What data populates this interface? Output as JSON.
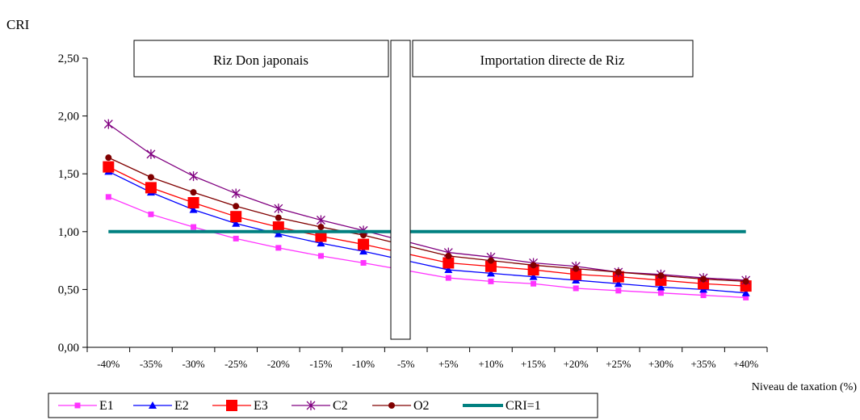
{
  "chart_data": {
    "type": "line",
    "ylabel": "CRI",
    "xlabel": "Niveau de taxation (%)",
    "ylim": [
      0,
      2.5
    ],
    "yticks": [
      "0,00",
      "0,50",
      "1,00",
      "1,50",
      "2,00",
      "2,50"
    ],
    "categories": [
      "-40%",
      "-35%",
      "-30%",
      "-25%",
      "-20%",
      "-15%",
      "-10%",
      "-5%",
      "+5%",
      "+10%",
      "+15%",
      "+20%",
      "+25%",
      "+30%",
      "+35%",
      "+40%"
    ],
    "grid": false,
    "legend_position": "bottom",
    "annotations": {
      "left_box": "Riz Don japonais",
      "right_box": "Importation directe de Riz"
    },
    "series": [
      {
        "name": "E1",
        "color": "#ff33ff",
        "marker": "square-small",
        "values": [
          1.3,
          1.15,
          1.04,
          0.94,
          0.86,
          0.79,
          0.73,
          null,
          0.6,
          0.57,
          0.55,
          0.51,
          0.49,
          0.47,
          0.45,
          0.43
        ]
      },
      {
        "name": "E2",
        "color": "#0000ff",
        "marker": "triangle",
        "values": [
          1.52,
          1.34,
          1.19,
          1.07,
          0.98,
          0.9,
          0.83,
          null,
          0.67,
          0.64,
          0.61,
          0.58,
          0.55,
          0.52,
          0.5,
          0.47
        ]
      },
      {
        "name": "E3",
        "color": "#ff0000",
        "marker": "square-big",
        "values": [
          1.56,
          1.38,
          1.25,
          1.13,
          1.04,
          0.96,
          0.89,
          null,
          0.73,
          0.7,
          0.67,
          0.63,
          0.61,
          0.58,
          0.55,
          0.53
        ]
      },
      {
        "name": "C2",
        "color": "#800080",
        "marker": "star",
        "values": [
          1.93,
          1.67,
          1.48,
          1.33,
          1.2,
          1.1,
          1.01,
          null,
          0.82,
          0.78,
          0.73,
          0.7,
          0.65,
          0.63,
          0.6,
          0.58
        ]
      },
      {
        "name": "O2",
        "color": "#800000",
        "marker": "circle",
        "values": [
          1.64,
          1.47,
          1.34,
          1.22,
          1.12,
          1.04,
          0.97,
          null,
          0.79,
          0.75,
          0.71,
          0.68,
          0.65,
          0.62,
          0.59,
          0.57
        ]
      },
      {
        "name": "CRI=1",
        "color": "#008080",
        "marker": "none",
        "values": [
          1,
          1,
          1,
          1,
          1,
          1,
          1,
          1,
          1,
          1,
          1,
          1,
          1,
          1,
          1,
          1
        ]
      }
    ]
  }
}
